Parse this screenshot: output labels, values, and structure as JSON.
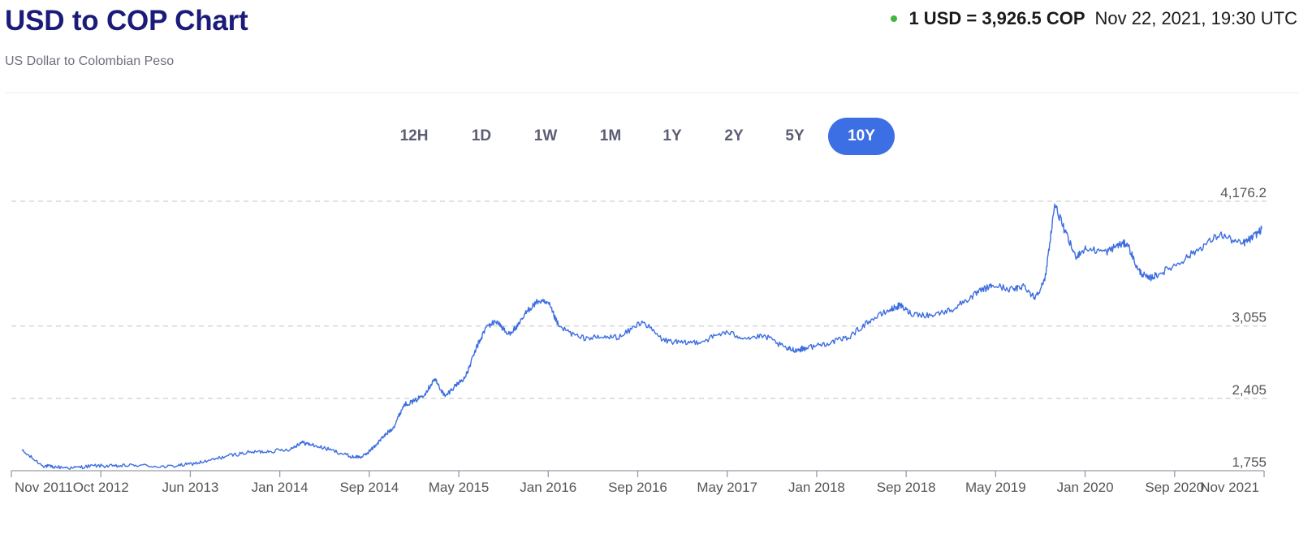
{
  "header": {
    "title": "USD to COP Chart",
    "subtitle": "US Dollar to Colombian Peso",
    "rate_quote": "1 USD = 3,926.5 COP",
    "rate_time": "Nov 22, 2021, 19:30 UTC",
    "status_color": "#41b541"
  },
  "range_selector": {
    "options": [
      "12H",
      "1D",
      "1W",
      "1M",
      "1Y",
      "2Y",
      "5Y",
      "10Y"
    ],
    "active": "10Y",
    "active_color": "#3c6fe3"
  },
  "chart_data": {
    "type": "line",
    "title": "USD to COP Chart",
    "xlabel": "",
    "ylabel": "",
    "line_color": "#3d6ee0",
    "ylim": [
      1755,
      4176.2
    ],
    "y_ticks": [
      1755,
      2405,
      3055,
      4176.2
    ],
    "y_tick_labels": [
      "1,755",
      "2,405",
      "3,055",
      "4,176.2"
    ],
    "x_tick_labels": [
      "Nov 2011",
      "Oct 2012",
      "Jun 2013",
      "Jan 2014",
      "Sep 2014",
      "May 2015",
      "Jan 2016",
      "Sep 2016",
      "May 2017",
      "Jan 2018",
      "Sep 2018",
      "May 2019",
      "Jan 2020",
      "Sep 2020",
      "Nov 2021"
    ],
    "grid": "horizontal dashed",
    "series": [
      {
        "x": [
          "2011-11",
          "2012-01",
          "2012-02",
          "2012-04",
          "2012-06",
          "2012-08",
          "2012-10",
          "2013-01",
          "2013-03",
          "2013-05",
          "2013-07",
          "2013-09",
          "2013-11",
          "2014-01",
          "2014-02",
          "2014-03",
          "2014-05",
          "2014-07",
          "2014-08",
          "2014-09",
          "2014-10",
          "2014-11",
          "2014-12",
          "2015-01",
          "2015-02",
          "2015-03",
          "2015-04",
          "2015-05",
          "2015-06",
          "2015-07",
          "2015-08",
          "2015-09",
          "2015-10",
          "2015-11",
          "2015-12",
          "2016-01",
          "2016-02",
          "2016-03",
          "2016-05",
          "2016-07",
          "2016-09",
          "2016-11",
          "2017-01",
          "2017-03",
          "2017-05",
          "2017-07",
          "2017-09",
          "2017-11",
          "2018-01",
          "2018-02",
          "2018-03",
          "2018-05",
          "2018-07",
          "2018-09",
          "2018-11",
          "2018-12",
          "2019-01",
          "2019-03",
          "2019-05",
          "2019-07",
          "2019-08",
          "2019-09",
          "2019-11",
          "2019-12",
          "2020-01",
          "2020-02",
          "2020-03",
          "2020-04",
          "2020-05",
          "2020-06",
          "2020-08",
          "2020-09",
          "2020-10",
          "2020-11",
          "2020-12",
          "2021-01",
          "2021-03",
          "2021-05",
          "2021-07",
          "2021-09",
          "2021-10",
          "2021-11"
        ],
        "y": [
          1935,
          1800,
          1790,
          1780,
          1800,
          1795,
          1805,
          1790,
          1810,
          1840,
          1890,
          1920,
          1930,
          1950,
          2010,
          1990,
          1940,
          1880,
          1880,
          1960,
          2060,
          2150,
          2350,
          2380,
          2450,
          2580,
          2420,
          2520,
          2600,
          2850,
          3050,
          3100,
          2980,
          3050,
          3200,
          3280,
          3250,
          3050,
          2950,
          2950,
          2960,
          3100,
          2930,
          2900,
          2920,
          3000,
          2950,
          2960,
          2850,
          2840,
          2860,
          2900,
          2950,
          3100,
          3200,
          3240,
          3170,
          3150,
          3200,
          3320,
          3380,
          3420,
          3380,
          3420,
          3310,
          3460,
          4150,
          3900,
          3680,
          3750,
          3720,
          3780,
          3800,
          3560,
          3480,
          3520,
          3620,
          3750,
          3880,
          3790,
          3840,
          3926.5
        ]
      }
    ]
  }
}
